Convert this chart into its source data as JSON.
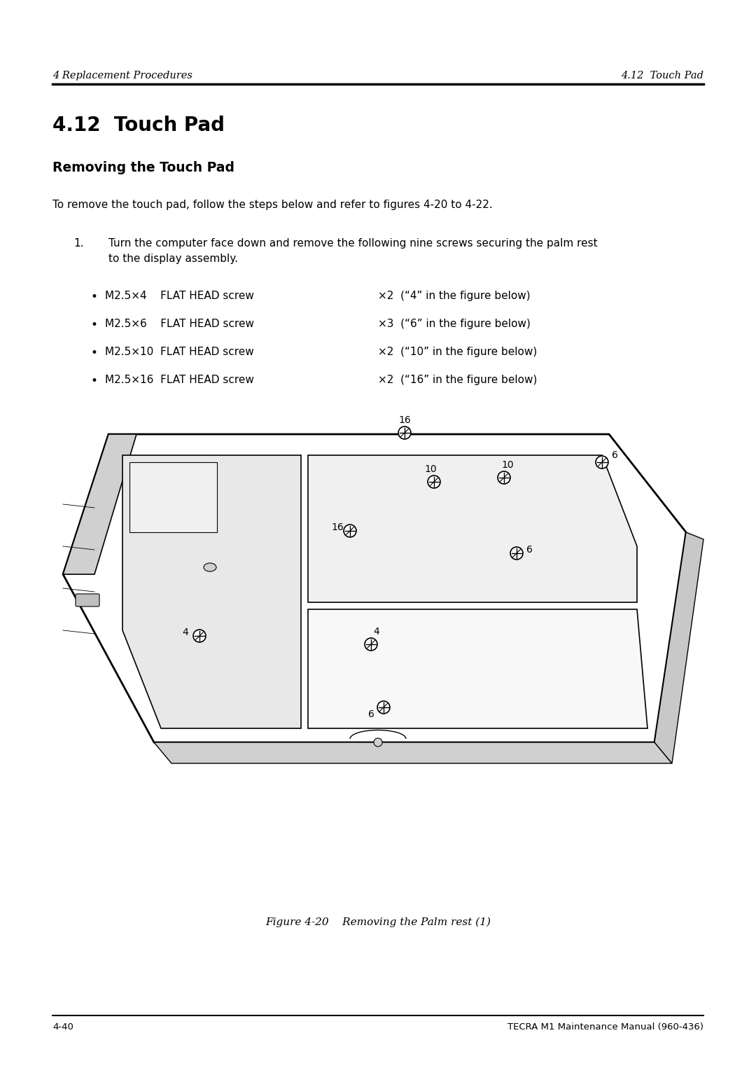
{
  "bg_color": "#ffffff",
  "header_left": "4 Replacement Procedures",
  "header_right": "4.12  Touch Pad",
  "title": "4.12  Touch Pad",
  "subtitle": "Removing the Touch Pad",
  "body_text": "To remove the touch pad, follow the steps below and refer to figures 4-20 to 4-22.",
  "step1_num": "1.",
  "step1_text": "Turn the computer face down and remove the following nine screws securing the palm rest\nto the display assembly.",
  "bullets": [
    {
      "spec": "M2.5×4    FLAT HEAD screw",
      "qty": "×2  (“4” in the figure below)"
    },
    {
      "spec": "M2.5×6    FLAT HEAD screw",
      "qty": "×3  (“6” in the figure below)"
    },
    {
      "spec": "M2.5×10  FLAT HEAD screw",
      "qty": "×2  (“10” in the figure below)"
    },
    {
      "spec": "M2.5×16  FLAT HEAD screw",
      "qty": "×2  (“16” in the figure below)"
    }
  ],
  "figure_caption": "Figure 4-20    Removing the Palm rest (1)",
  "footer_left": "4-40",
  "footer_right": "TECRA M1 Maintenance Manual (960-436)"
}
